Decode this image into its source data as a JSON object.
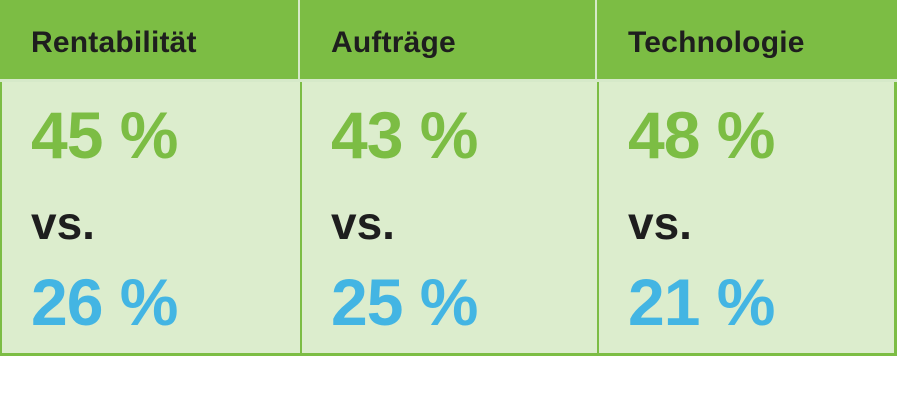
{
  "colors": {
    "header_green": "#7cbd44",
    "panel_green": "#dcedcd",
    "primary_value": "#7cbd44",
    "secondary_value": "#43b5e3",
    "text_dark": "#1e1e1e"
  },
  "columns": [
    {
      "title": "Rentabilität",
      "value_top": "45 %",
      "separator": "vs.",
      "value_bottom": "26 %"
    },
    {
      "title": "Aufträge",
      "value_top": "43 %",
      "separator": "vs.",
      "value_bottom": "25 %"
    },
    {
      "title": "Technologie",
      "value_top": "48 %",
      "separator": "vs.",
      "value_bottom": "21 %"
    }
  ]
}
